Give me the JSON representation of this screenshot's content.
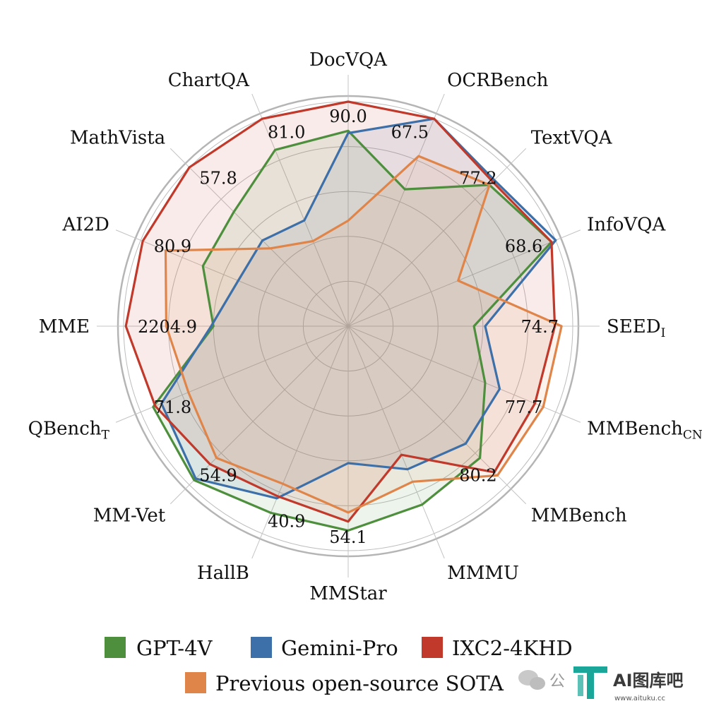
{
  "chart_data": {
    "type": "radar",
    "axes": [
      {
        "name": "DocVQA",
        "sub": "",
        "max_label": "90.0"
      },
      {
        "name": "OCRBench",
        "sub": "",
        "max_label": "67.5"
      },
      {
        "name": "TextVQA",
        "sub": "",
        "max_label": "77.2"
      },
      {
        "name": "InfoVQA",
        "sub": "",
        "max_label": "68.6"
      },
      {
        "name": "SEED",
        "sub": "I",
        "max_label": "74.7"
      },
      {
        "name": "MMBench",
        "sub": "CN",
        "max_label": "77.7"
      },
      {
        "name": "MMBench",
        "sub": "",
        "max_label": "80.2"
      },
      {
        "name": "MMMU",
        "sub": "",
        "max_label": ""
      },
      {
        "name": "MMStar",
        "sub": "",
        "max_label": "54.1"
      },
      {
        "name": "HallB",
        "sub": "",
        "max_label": "40.9"
      },
      {
        "name": "MM-Vet",
        "sub": "",
        "max_label": "54.9"
      },
      {
        "name": "QBench",
        "sub": "T",
        "max_label": "71.8"
      },
      {
        "name": "MME",
        "sub": "",
        "max_label": "2204.9"
      },
      {
        "name": "AI2D",
        "sub": "",
        "max_label": "80.9"
      },
      {
        "name": "MathVista",
        "sub": "",
        "max_label": "57.8"
      },
      {
        "name": "ChartQA",
        "sub": "",
        "max_label": "81.0"
      }
    ],
    "scale": "normalized to the outer ring",
    "rings": 5,
    "series": [
      {
        "name": "GPT-4V",
        "color": "#4e8f3d",
        "fill": "#4e8f3d",
        "values": [
          0.87,
          0.66,
          0.89,
          0.98,
          0.56,
          0.66,
          0.83,
          0.86,
          0.91,
          0.9,
          0.97,
          0.94,
          0.6,
          0.7,
          0.72,
          0.85
        ]
      },
      {
        "name": "Gemini-Pro",
        "color": "#3d6fa8",
        "fill": "#3d6fa8",
        "values": [
          0.86,
          1.0,
          0.92,
          1.0,
          0.61,
          0.73,
          0.74,
          0.69,
          0.61,
          0.83,
          0.96,
          0.9,
          0.61,
          0.53,
          0.54,
          0.51
        ]
      },
      {
        "name": "IXC2-4KHD",
        "color": "#c0392b",
        "fill": "#c0392b",
        "values": [
          1.0,
          1.0,
          0.91,
          0.98,
          0.92,
          0.9,
          0.92,
          0.62,
          0.87,
          0.82,
          0.87,
          0.93,
          0.99,
          0.99,
          1.0,
          1.0
        ]
      },
      {
        "name": "Previous open-source SOTA",
        "color": "#e0854a",
        "fill": "#e0854a",
        "values": [
          0.47,
          0.82,
          0.89,
          0.53,
          0.95,
          0.94,
          0.94,
          0.75,
          0.83,
          0.76,
          0.83,
          0.77,
          0.81,
          0.88,
          0.49,
          0.41
        ]
      }
    ]
  },
  "legend": {
    "gpt4v": "GPT-4V",
    "gemini": "Gemini-Pro",
    "ixc": "IXC2-4KHD",
    "sota": "Previous open-source SOTA"
  },
  "watermark": {
    "wechat_label": "公",
    "brand": "AI图库吧",
    "url": "www.aituku.cc",
    "brand_color": "#1aa79a"
  }
}
